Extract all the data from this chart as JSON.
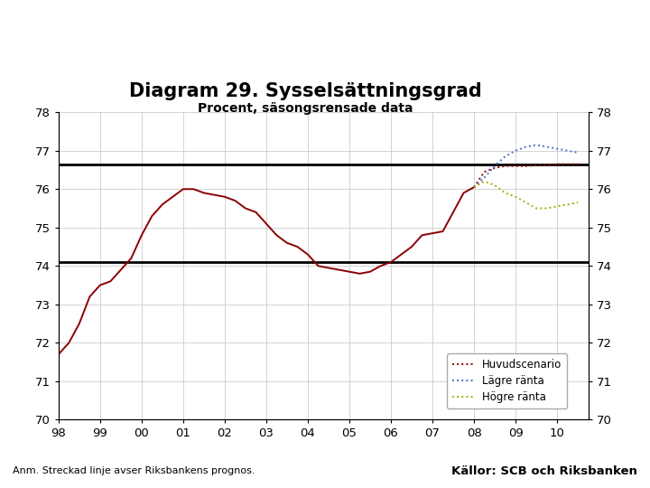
{
  "title": "Diagram 29. Sysselsättningsgrad",
  "subtitle": "Procent, säsongsrensade data",
  "footnote": "Anm. Streckad linje avser Riksbankens prognos.",
  "source": "Källor: SCB och Riksbanken",
  "xlim": [
    1998,
    2010.75
  ],
  "ylim": [
    70,
    78
  ],
  "yticks": [
    70,
    71,
    72,
    73,
    74,
    75,
    76,
    77,
    78
  ],
  "xticks": [
    1998,
    1999,
    2000,
    2001,
    2002,
    2003,
    2004,
    2005,
    2006,
    2007,
    2008,
    2009,
    2010
  ],
  "xticklabels": [
    "98",
    "99",
    "00",
    "01",
    "02",
    "03",
    "04",
    "05",
    "06",
    "07",
    "08",
    "09",
    "10"
  ],
  "hlines": [
    76.65,
    74.1
  ],
  "historical_x": [
    1998.0,
    1998.25,
    1998.5,
    1998.75,
    1999.0,
    1999.25,
    1999.5,
    1999.75,
    2000.0,
    2000.25,
    2000.5,
    2000.75,
    2001.0,
    2001.25,
    2001.5,
    2001.75,
    2002.0,
    2002.25,
    2002.5,
    2002.75,
    2003.0,
    2003.25,
    2003.5,
    2003.75,
    2004.0,
    2004.25,
    2004.5,
    2004.75,
    2005.0,
    2005.25,
    2005.5,
    2005.75,
    2006.0,
    2006.25,
    2006.5,
    2006.75,
    2007.0,
    2007.25,
    2007.5,
    2007.75,
    2008.0
  ],
  "historical_y": [
    71.7,
    72.0,
    72.5,
    73.2,
    73.5,
    73.6,
    73.9,
    74.2,
    74.8,
    75.3,
    75.6,
    75.8,
    76.0,
    76.0,
    75.9,
    75.85,
    75.8,
    75.7,
    75.5,
    75.4,
    75.1,
    74.8,
    74.6,
    74.5,
    74.3,
    74.0,
    73.95,
    73.9,
    73.85,
    73.8,
    73.85,
    74.0,
    74.1,
    74.3,
    74.5,
    74.8,
    74.85,
    74.9,
    75.4,
    75.9,
    76.05
  ],
  "historical_color": "#8B0000",
  "huvudscenario_x": [
    2008.0,
    2008.25,
    2008.5,
    2008.75,
    2009.0,
    2009.25,
    2009.5,
    2009.75,
    2010.0,
    2010.25,
    2010.5
  ],
  "huvudscenario_y": [
    76.05,
    76.45,
    76.55,
    76.6,
    76.6,
    76.6,
    76.62,
    76.63,
    76.65,
    76.65,
    76.65
  ],
  "huvudscenario_color": "#8B0000",
  "lagre_x": [
    2008.0,
    2008.25,
    2008.5,
    2008.75,
    2009.0,
    2009.25,
    2009.5,
    2009.75,
    2010.0,
    2010.25,
    2010.5
  ],
  "lagre_y": [
    76.05,
    76.3,
    76.6,
    76.85,
    77.0,
    77.1,
    77.15,
    77.1,
    77.05,
    77.0,
    76.95
  ],
  "lagre_color": "#4472C4",
  "hogre_x": [
    2008.0,
    2008.25,
    2008.5,
    2008.75,
    2009.0,
    2009.25,
    2009.5,
    2009.75,
    2010.0,
    2010.25,
    2010.5
  ],
  "hogre_y": [
    76.05,
    76.2,
    76.1,
    75.9,
    75.8,
    75.65,
    75.5,
    75.5,
    75.55,
    75.6,
    75.65
  ],
  "hogre_color": "#AAAA00",
  "legend_labels": [
    "Huvudscenario",
    "Lägre ränta",
    "Högre ränta"
  ],
  "grid_color": "#CCCCCC",
  "background_color": "#FFFFFF",
  "banner_color": "#1a3f7a",
  "title_fontsize": 15,
  "subtitle_fontsize": 10
}
